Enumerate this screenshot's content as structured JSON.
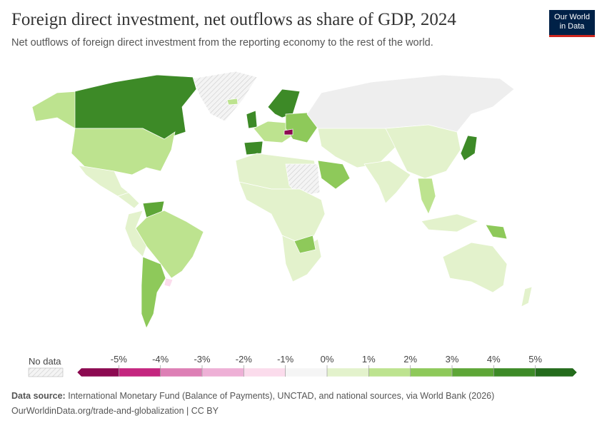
{
  "header": {
    "title": "Foreign direct investment, net outflows as share of GDP, 2024",
    "subtitle": "Net outflows of foreign direct investment from the reporting economy to the rest of the world.",
    "logo": [
      "Our World",
      "in Data"
    ]
  },
  "legend": {
    "no_data": "No data",
    "xlim": [
      -6,
      6
    ],
    "ticks": [
      {
        "value": -5,
        "label": "-5%"
      },
      {
        "value": -4,
        "label": "-4%"
      },
      {
        "value": -3,
        "label": "-3%"
      },
      {
        "value": -2,
        "label": "-2%"
      },
      {
        "value": -1,
        "label": "-1%"
      },
      {
        "value": 0,
        "label": "0%"
      },
      {
        "value": 1,
        "label": "1%"
      },
      {
        "value": 2,
        "label": "2%"
      },
      {
        "value": 3,
        "label": "3%"
      },
      {
        "value": 4,
        "label": "4%"
      },
      {
        "value": 5,
        "label": "5%"
      }
    ],
    "colors": [
      "#8c0a51",
      "#c4267f",
      "#dd7fb5",
      "#eeb0d6",
      "#fbdcec",
      "#f5f5f5",
      "#e3f2cc",
      "#bde38f",
      "#8ec95a",
      "#5ea637",
      "#3d8a27",
      "#246b1c"
    ]
  },
  "footer": {
    "source_label": "Data source:",
    "source": "International Monetary Fund (Balance of Payments), UNCTAD, and national sources, via World Bank (2026)",
    "link": "OurWorldinData.org/trade-and-globalization | CC BY"
  }
}
